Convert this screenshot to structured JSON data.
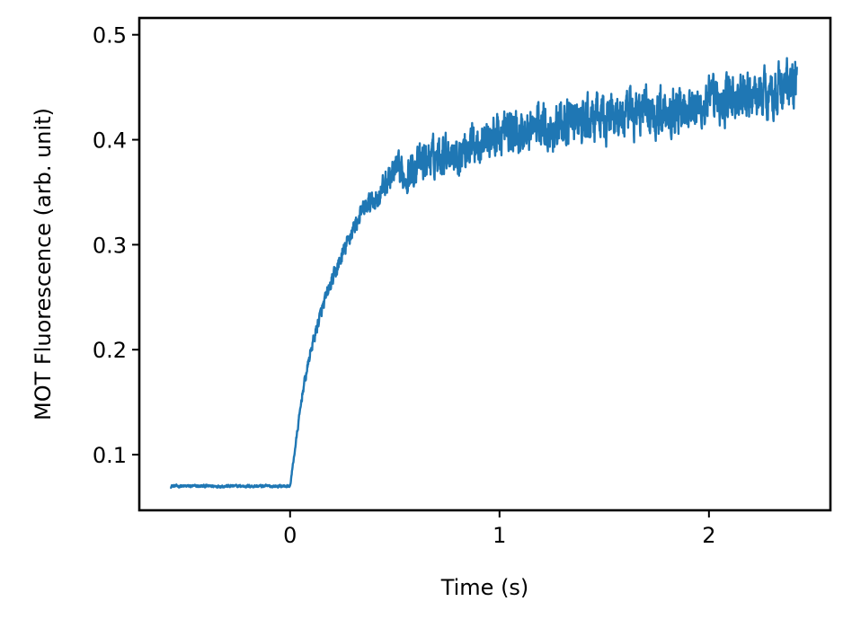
{
  "chart_data": {
    "type": "line",
    "title": "",
    "xlabel": "Time (s)",
    "ylabel": "MOT Fluorescence (arb. unit)",
    "xlim": [
      -0.72,
      2.58
    ],
    "ylim": [
      0.047,
      0.516
    ],
    "xticks": [
      0,
      1,
      2
    ],
    "xtick_labels": [
      "0",
      "1",
      "2"
    ],
    "yticks": [
      0.1,
      0.2,
      0.3,
      0.4,
      0.5
    ],
    "ytick_labels": [
      "0.1",
      "0.2",
      "0.3",
      "0.4",
      "0.5"
    ],
    "grid": false,
    "legend": "none",
    "series": [
      {
        "color": "#1f77b4",
        "x": [
          -0.57,
          -0.5,
          -0.4,
          -0.3,
          -0.2,
          -0.1,
          0.0,
          0.03,
          0.06,
          0.1,
          0.14,
          0.18,
          0.22,
          0.26,
          0.3,
          0.34,
          0.38,
          0.42,
          0.46,
          0.5,
          0.55,
          0.6,
          0.65,
          0.7,
          0.75,
          0.8,
          0.85,
          0.9,
          0.95,
          1.0,
          1.05,
          1.1,
          1.15,
          1.2,
          1.25,
          1.3,
          1.35,
          1.4,
          1.45,
          1.5,
          1.55,
          1.6,
          1.65,
          1.7,
          1.75,
          1.8,
          1.85,
          1.9,
          1.95,
          2.0,
          2.05,
          2.1,
          2.15,
          2.2,
          2.25,
          2.3,
          2.35,
          2.4,
          2.42
        ],
        "y": [
          0.07,
          0.07,
          0.07,
          0.07,
          0.07,
          0.07,
          0.07,
          0.115,
          0.16,
          0.2,
          0.23,
          0.255,
          0.275,
          0.295,
          0.315,
          0.33,
          0.34,
          0.345,
          0.36,
          0.37,
          0.365,
          0.375,
          0.38,
          0.385,
          0.39,
          0.385,
          0.395,
          0.4,
          0.4,
          0.405,
          0.41,
          0.405,
          0.41,
          0.415,
          0.41,
          0.415,
          0.42,
          0.415,
          0.42,
          0.42,
          0.425,
          0.42,
          0.425,
          0.43,
          0.425,
          0.43,
          0.43,
          0.435,
          0.43,
          0.435,
          0.435,
          0.44,
          0.44,
          0.44,
          0.445,
          0.445,
          0.45,
          0.45,
          0.455
        ],
        "noise_amplitude": [
          0.002,
          0.002,
          0.002,
          0.002,
          0.002,
          0.002,
          0.002,
          0.004,
          0.006,
          0.008,
          0.009,
          0.01,
          0.011,
          0.012,
          0.012,
          0.013,
          0.014,
          0.016,
          0.02,
          0.024,
          0.025,
          0.026,
          0.027,
          0.028,
          0.028,
          0.029,
          0.03,
          0.03,
          0.031,
          0.031,
          0.032,
          0.032,
          0.032,
          0.033,
          0.033,
          0.033,
          0.033,
          0.034,
          0.034,
          0.034,
          0.034,
          0.034,
          0.034,
          0.035,
          0.035,
          0.035,
          0.035,
          0.035,
          0.035,
          0.035,
          0.035,
          0.035,
          0.035,
          0.035,
          0.036,
          0.036,
          0.036,
          0.036,
          0.036
        ]
      }
    ]
  }
}
